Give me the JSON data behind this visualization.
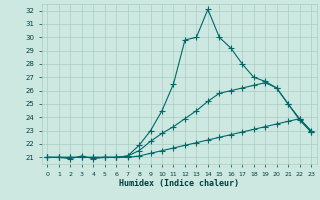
{
  "xlabel": "Humidex (Indice chaleur)",
  "bg_color": "#cce8e0",
  "grid_color": "#aaccc4",
  "line_color": "#006868",
  "xlim": [
    -0.5,
    23.5
  ],
  "ylim": [
    20.5,
    32.5
  ],
  "xticks": [
    0,
    1,
    2,
    3,
    4,
    5,
    6,
    7,
    8,
    9,
    10,
    11,
    12,
    13,
    14,
    15,
    16,
    17,
    18,
    19,
    20,
    21,
    22,
    23
  ],
  "yticks": [
    21,
    22,
    23,
    24,
    25,
    26,
    27,
    28,
    29,
    30,
    31,
    32
  ],
  "line1_x": [
    0,
    1,
    2,
    3,
    4,
    5,
    6,
    7,
    8,
    9,
    10,
    11,
    12,
    13,
    14,
    15,
    16,
    17,
    18,
    19,
    20,
    21,
    22,
    23
  ],
  "line1_y": [
    21,
    21,
    20.9,
    21.1,
    20.9,
    21.0,
    21.0,
    21.1,
    21.9,
    23.0,
    24.5,
    26.5,
    29.8,
    30.0,
    32.1,
    30.0,
    29.2,
    28.0,
    27.0,
    26.7,
    26.2,
    25.0,
    23.9,
    23.0
  ],
  "line2_x": [
    0,
    1,
    2,
    3,
    4,
    5,
    6,
    7,
    8,
    9,
    10,
    11,
    12,
    13,
    14,
    15,
    16,
    17,
    18,
    19,
    20,
    21,
    22,
    23
  ],
  "line2_y": [
    21,
    21,
    21.0,
    21.0,
    21.0,
    21.0,
    21.0,
    21.1,
    21.5,
    22.2,
    22.8,
    23.3,
    23.9,
    24.5,
    25.2,
    25.8,
    26.0,
    26.2,
    26.4,
    26.6,
    26.2,
    25.0,
    23.8,
    22.9
  ],
  "line3_x": [
    0,
    1,
    2,
    3,
    4,
    5,
    6,
    7,
    8,
    9,
    10,
    11,
    12,
    13,
    14,
    15,
    16,
    17,
    18,
    19,
    20,
    21,
    22,
    23
  ],
  "line3_y": [
    21,
    21,
    21.0,
    21.0,
    21.0,
    21.0,
    21.0,
    21.0,
    21.1,
    21.3,
    21.5,
    21.7,
    21.9,
    22.1,
    22.3,
    22.5,
    22.7,
    22.9,
    23.1,
    23.3,
    23.5,
    23.7,
    23.9,
    22.9
  ]
}
